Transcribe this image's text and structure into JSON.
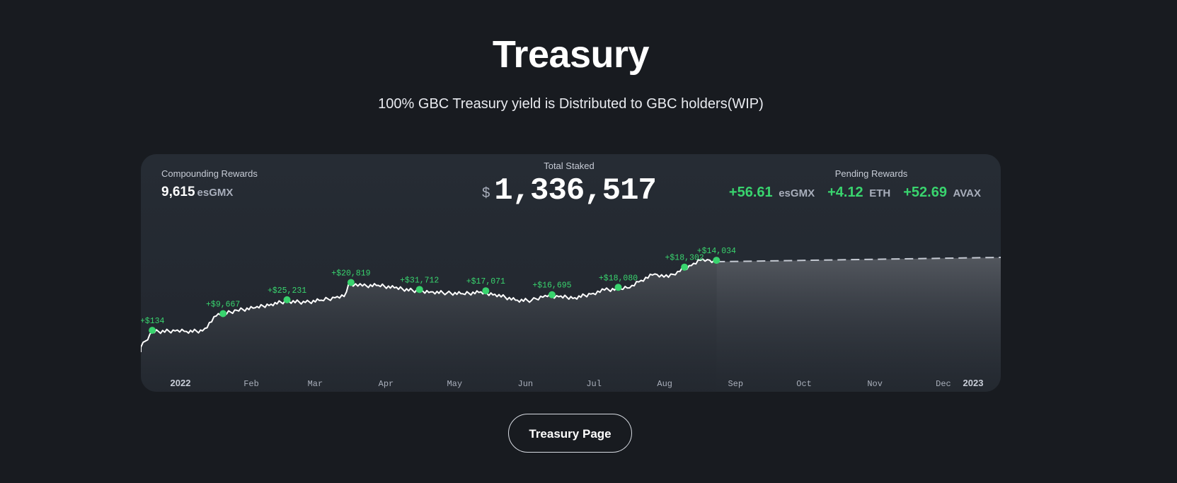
{
  "header": {
    "title": "Treasury",
    "subtitle": "100% GBC Treasury yield is Distributed to GBC holders(WIP)"
  },
  "card": {
    "compounding": {
      "label": "Compounding Rewards",
      "value": "9,615",
      "unit": "esGMX"
    },
    "total_staked": {
      "label": "Total Staked",
      "currency": "$",
      "value": "1,336,517"
    },
    "pending": {
      "label": "Pending Rewards",
      "items": [
        {
          "amount": "+56.61",
          "unit": "esGMX"
        },
        {
          "amount": "+4.12",
          "unit": "ETH"
        },
        {
          "amount": "+52.69",
          "unit": "AVAX"
        }
      ]
    }
  },
  "chart_data": {
    "type": "area",
    "title": "",
    "xlabel": "",
    "ylabel": "",
    "x_tick_labels": [
      "2022",
      "Feb",
      "Mar",
      "Apr",
      "May",
      "Jun",
      "Jul",
      "Aug",
      "Sep",
      "Oct",
      "Nov",
      "Dec",
      "2023"
    ],
    "x": [
      "2022-01-01",
      "2022-01-06",
      "2022-01-16",
      "2022-01-21",
      "2022-01-28",
      "2022-02-03",
      "2022-02-12",
      "2022-02-20",
      "2022-02-27",
      "2022-03-06",
      "2022-03-14",
      "2022-03-21",
      "2022-03-27",
      "2022-03-31",
      "2022-04-02",
      "2022-04-08",
      "2022-04-15",
      "2022-04-22",
      "2022-04-30",
      "2022-05-08",
      "2022-05-15",
      "2022-05-22",
      "2022-05-29",
      "2022-06-05",
      "2022-06-14",
      "2022-06-21",
      "2022-06-27",
      "2022-07-03",
      "2022-07-10",
      "2022-07-17",
      "2022-07-23",
      "2022-07-30",
      "2022-08-03",
      "2022-08-08",
      "2022-08-14",
      "2022-08-20",
      "2022-08-24",
      "2022-08-30",
      "2022-09-04",
      "2022-09-06",
      "2022-09-10"
    ],
    "values": [
      40,
      165,
      172,
      168,
      172,
      292,
      338,
      358,
      388,
      412,
      402,
      420,
      440,
      450,
      555,
      535,
      540,
      520,
      498,
      488,
      478,
      472,
      482,
      468,
      420,
      418,
      458,
      448,
      440,
      470,
      502,
      512,
      520,
      580,
      632,
      605,
      652,
      700,
      752,
      748,
      731
    ],
    "projection": {
      "start": "2022-09-10",
      "end": "2023-01-01",
      "values": [
        731,
        766
      ]
    },
    "rewards": [
      {
        "date": "2022-01-06",
        "label": "+$134"
      },
      {
        "date": "2022-02-06",
        "label": "+$9,667"
      },
      {
        "date": "2022-03-06",
        "label": "+$25,231"
      },
      {
        "date": "2022-04-03",
        "label": "+$20,819"
      },
      {
        "date": "2022-05-03",
        "label": "+$31,712"
      },
      {
        "date": "2022-06-01",
        "label": "+$17,071"
      },
      {
        "date": "2022-06-30",
        "label": "+$16,695"
      },
      {
        "date": "2022-07-29",
        "label": "+$18,080"
      },
      {
        "date": "2022-08-27",
        "label": "+$18,302"
      },
      {
        "date": "2022-09-10",
        "label": "+$14,034"
      }
    ],
    "grid": false,
    "legend": "none"
  },
  "colors": {
    "background": "#181b20",
    "card": "#242a31",
    "accent_green": "#39d46e",
    "line": "#ffffff",
    "projection_line": "#c5cad3"
  },
  "cta": {
    "label": "Treasury Page"
  }
}
